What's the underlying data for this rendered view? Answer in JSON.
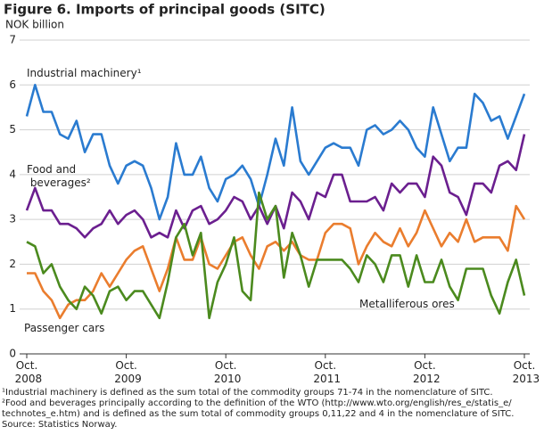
{
  "chart_data": {
    "type": "line",
    "title": "Figure 6. Imports of principal goods (SITC)",
    "y_label": "NOK billion",
    "categories": [
      "Oct. 2008",
      null,
      null,
      null,
      null,
      null,
      null,
      null,
      null,
      null,
      null,
      null,
      "Oct. 2009",
      null,
      null,
      null,
      null,
      null,
      null,
      null,
      null,
      null,
      null,
      null,
      "Oct. 2010",
      null,
      null,
      null,
      null,
      null,
      null,
      null,
      null,
      null,
      null,
      null,
      "Oct. 2011",
      null,
      null,
      null,
      null,
      null,
      null,
      null,
      null,
      null,
      null,
      null,
      "Oct. 2012",
      null,
      null,
      null,
      null,
      null,
      null,
      null,
      null,
      null,
      null,
      null,
      "Oct. 2013"
    ],
    "series": [
      {
        "name": "Industrial machinery¹",
        "color": "#2a7bd0",
        "values": [
          5.3,
          6.0,
          5.4,
          5.4,
          4.9,
          4.8,
          5.2,
          4.5,
          4.9,
          4.9,
          4.2,
          3.8,
          4.2,
          4.3,
          4.2,
          3.7,
          3.0,
          3.5,
          4.7,
          4.0,
          4.0,
          4.4,
          3.7,
          3.4,
          3.9,
          4.0,
          4.2,
          3.9,
          3.3,
          4.0,
          4.8,
          4.2,
          5.5,
          4.3,
          4.0,
          4.3,
          4.6,
          4.7,
          4.6,
          4.6,
          4.2,
          5.0,
          5.1,
          4.9,
          5.0,
          5.2,
          5.0,
          4.6,
          4.4,
          5.5,
          4.9,
          4.3,
          4.6,
          4.6,
          5.8,
          5.6,
          5.2,
          5.3,
          4.8,
          5.3,
          5.8
        ]
      },
      {
        "name": "Food and beverages²",
        "color": "#6b1f8f",
        "values": [
          3.2,
          3.7,
          3.2,
          3.2,
          2.9,
          2.9,
          2.8,
          2.6,
          2.8,
          2.9,
          3.2,
          2.9,
          3.1,
          3.2,
          3.0,
          2.6,
          2.7,
          2.6,
          3.2,
          2.8,
          3.2,
          3.3,
          2.9,
          3.0,
          3.2,
          3.5,
          3.4,
          3.0,
          3.3,
          2.9,
          3.3,
          2.8,
          3.6,
          3.4,
          3.0,
          3.6,
          3.5,
          4.0,
          4.0,
          3.4,
          3.4,
          3.4,
          3.5,
          3.2,
          3.8,
          3.6,
          3.8,
          3.8,
          3.5,
          4.4,
          4.2,
          3.6,
          3.5,
          3.1,
          3.8,
          3.8,
          3.6,
          4.2,
          4.3,
          4.1,
          4.9
        ]
      },
      {
        "name": "Passenger cars",
        "color": "#ea7d2e",
        "values": [
          1.8,
          1.8,
          1.4,
          1.2,
          0.8,
          1.1,
          1.2,
          1.2,
          1.4,
          1.8,
          1.5,
          1.8,
          2.1,
          2.3,
          2.4,
          1.9,
          1.4,
          1.9,
          2.6,
          2.1,
          2.1,
          2.6,
          2.0,
          1.9,
          2.2,
          2.5,
          2.6,
          2.2,
          1.9,
          2.4,
          2.5,
          2.3,
          2.5,
          2.2,
          2.1,
          2.1,
          2.7,
          2.9,
          2.9,
          2.8,
          2.0,
          2.4,
          2.7,
          2.5,
          2.4,
          2.8,
          2.4,
          2.7,
          3.2,
          2.8,
          2.4,
          2.7,
          2.5,
          3.0,
          2.5,
          2.6,
          2.6,
          2.6,
          2.3,
          3.3,
          3.0
        ]
      },
      {
        "name": "Metalliferous ores",
        "color": "#4b8a1e",
        "values": [
          2.5,
          2.4,
          1.8,
          2.0,
          1.5,
          1.2,
          1.0,
          1.5,
          1.3,
          0.9,
          1.4,
          1.5,
          1.2,
          1.4,
          1.4,
          1.1,
          0.8,
          1.6,
          2.6,
          2.9,
          2.2,
          2.7,
          0.8,
          1.6,
          2.0,
          2.6,
          1.4,
          1.2,
          3.6,
          3.0,
          3.3,
          1.7,
          2.7,
          2.2,
          1.5,
          2.1,
          2.1,
          2.1,
          2.1,
          1.9,
          1.6,
          2.2,
          2.0,
          1.6,
          2.2,
          2.2,
          1.5,
          2.2,
          1.6,
          1.6,
          2.1,
          1.5,
          1.2,
          1.9,
          1.9,
          1.9,
          1.3,
          0.9,
          1.6,
          2.1,
          1.3
        ]
      }
    ],
    "ylim": [
      0,
      7
    ],
    "yticks": [
      0,
      1,
      2,
      3,
      4,
      5,
      6,
      7
    ],
    "grid": true,
    "notes": [
      "¹Industrial machinery is defined as the sum total of the commodity groups 71-74 in the nomenclature of SITC.",
      "²Food and beverages principally according to the definition of the WTO (http://www.wto.org/english/res_e/statis_e/",
      "technotes_e.htm) and is defined as the sum total of commodity groups 0,11,22 and 4 in the nomenclature of SITC.",
      "Source: Statistics Norway."
    ]
  }
}
